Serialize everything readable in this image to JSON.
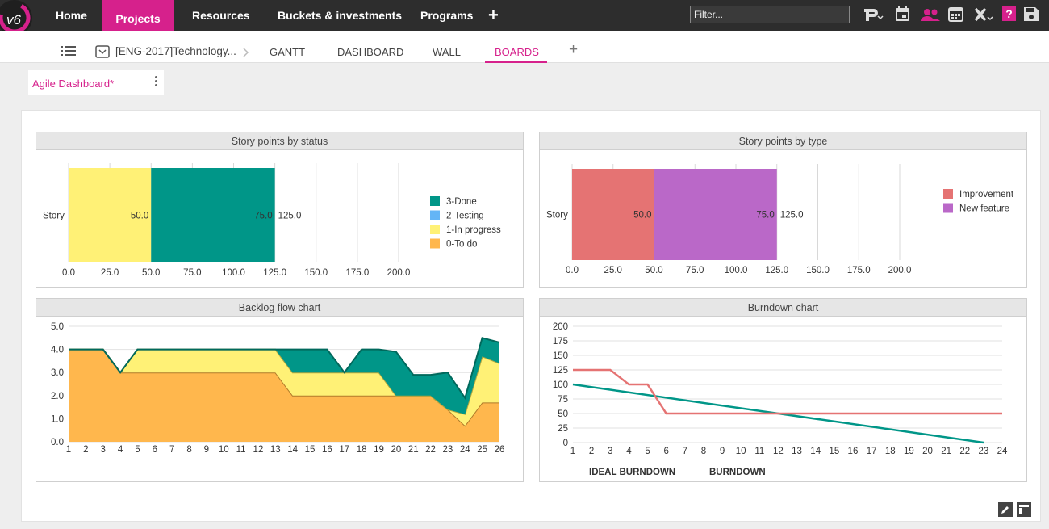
{
  "topnav": {
    "items": [
      "Home",
      "Projects",
      "Resources",
      "Buckets & investments",
      "Programs"
    ],
    "active": "Projects",
    "add_label": "+",
    "filter_placeholder": "Filter..."
  },
  "subnav": {
    "project": "[ENG-2017]Technology...",
    "tabs": [
      "GANTT",
      "DASHBOARD",
      "WALL",
      "BOARDS"
    ],
    "active_tab": "BOARDS",
    "add_label": "+"
  },
  "dashboard_tab": {
    "label": "Agile Dashboard*"
  },
  "colors": {
    "accent": "#d6218c",
    "done": "#009688",
    "testing": "#64b5f6",
    "in_progress": "#fff176",
    "todo": "#ffb74d",
    "improvement": "#e57373",
    "new_feature": "#ba68c8",
    "burndown": "#e57373",
    "ideal": "#009688"
  },
  "chart_data": [
    {
      "type": "bar",
      "title": "Story points by status",
      "orientation": "horizontal",
      "stacked": true,
      "categories": [
        "Story"
      ],
      "series": [
        {
          "name": "0-To do",
          "values": [
            0
          ]
        },
        {
          "name": "1-In progress",
          "values": [
            50
          ]
        },
        {
          "name": "2-Testing",
          "values": [
            0
          ]
        },
        {
          "name": "3-Done",
          "values": [
            75
          ]
        }
      ],
      "data_labels": [
        "50.0",
        "75.0"
      ],
      "total_label": "125.0",
      "xlim": [
        0,
        200
      ],
      "xticks": [
        "0.0",
        "25.0",
        "50.0",
        "75.0",
        "100.0",
        "125.0",
        "150.0",
        "175.0",
        "200.0"
      ],
      "legend": [
        "3-Done",
        "2-Testing",
        "1-In progress",
        "0-To do"
      ],
      "legend_position": "right",
      "grid": true
    },
    {
      "type": "bar",
      "title": "Story points by type",
      "orientation": "horizontal",
      "stacked": true,
      "categories": [
        "Story"
      ],
      "series": [
        {
          "name": "Improvement",
          "values": [
            50
          ]
        },
        {
          "name": "New feature",
          "values": [
            75
          ]
        }
      ],
      "data_labels": [
        "50.0",
        "75.0"
      ],
      "total_label": "125.0",
      "xlim": [
        0,
        200
      ],
      "xticks": [
        "0.0",
        "25.0",
        "50.0",
        "75.0",
        "100.0",
        "125.0",
        "150.0",
        "175.0",
        "200.0"
      ],
      "legend": [
        "Improvement",
        "New feature"
      ],
      "legend_position": "right",
      "grid": true
    },
    {
      "type": "area",
      "title": "Backlog flow chart",
      "stacked": true,
      "x": [
        1,
        2,
        3,
        4,
        5,
        6,
        7,
        8,
        9,
        10,
        11,
        12,
        13,
        14,
        15,
        16,
        17,
        18,
        19,
        20,
        21,
        22,
        23,
        24,
        25,
        26
      ],
      "xticks": [
        "1",
        "2",
        "3",
        "4",
        "5",
        "6",
        "7",
        "8",
        "9",
        "10",
        "11",
        "12",
        "13",
        "14",
        "15",
        "16",
        "17",
        "18",
        "19",
        "20",
        "21",
        "22",
        "23",
        "24",
        "25",
        "26"
      ],
      "yticks": [
        "0.0",
        "1.0",
        "2.0",
        "3.0",
        "4.0",
        "5.0"
      ],
      "ylim": [
        0,
        5
      ],
      "series": [
        {
          "name": "0-To do",
          "values": [
            4,
            4,
            4,
            3,
            3,
            3,
            3,
            3,
            3,
            3,
            3,
            3,
            3,
            2,
            2,
            2,
            2,
            2,
            2,
            2,
            2,
            2,
            1.4,
            0.7,
            1.7,
            1.7
          ]
        },
        {
          "name": "1-In progress",
          "values": [
            0,
            0,
            0,
            0,
            1,
            1,
            1,
            1,
            1,
            1,
            1,
            1,
            1,
            1,
            1,
            1,
            1,
            1,
            1,
            0,
            0,
            0,
            0,
            0.5,
            2,
            1.7
          ]
        },
        {
          "name": "3-Done",
          "values": [
            0,
            0,
            0,
            0,
            0,
            0,
            0,
            0,
            0,
            0,
            0,
            0,
            0,
            1,
            1,
            1,
            0,
            1,
            1,
            1.9,
            0.9,
            0.9,
            1.6,
            0.7,
            0.8,
            0.9
          ]
        }
      ],
      "grid": true
    },
    {
      "type": "line",
      "title": "Burndown chart",
      "x": [
        1,
        2,
        3,
        4,
        5,
        6,
        7,
        8,
        9,
        10,
        11,
        12,
        13,
        14,
        15,
        16,
        17,
        18,
        19,
        20,
        21,
        22,
        23,
        24
      ],
      "xticks": [
        "1",
        "2",
        "3",
        "4",
        "5",
        "6",
        "7",
        "8",
        "9",
        "10",
        "11",
        "12",
        "13",
        "14",
        "15",
        "16",
        "17",
        "18",
        "19",
        "20",
        "21",
        "22",
        "23",
        "24"
      ],
      "yticks": [
        "0",
        "25",
        "50",
        "75",
        "100",
        "125",
        "150",
        "175",
        "200"
      ],
      "ylim": [
        0,
        200
      ],
      "series": [
        {
          "name": "IDEAL BURNDOWN",
          "x": [
            1,
            23
          ],
          "values": [
            100,
            0
          ]
        },
        {
          "name": "BURNDOWN",
          "x": [
            1,
            2,
            3,
            4,
            5,
            6,
            7,
            8,
            9,
            10,
            11,
            12,
            13,
            14,
            15,
            16,
            17,
            18,
            19,
            20,
            21,
            22,
            23,
            24
          ],
          "values": [
            125,
            125,
            125,
            100,
            100,
            50,
            50,
            50,
            50,
            50,
            50,
            50,
            50,
            50,
            50,
            50,
            50,
            50,
            50,
            50,
            50,
            50,
            50,
            50
          ]
        }
      ],
      "legend": [
        "IDEAL BURNDOWN",
        "BURNDOWN"
      ],
      "legend_position": "bottom-left",
      "grid": true
    }
  ]
}
